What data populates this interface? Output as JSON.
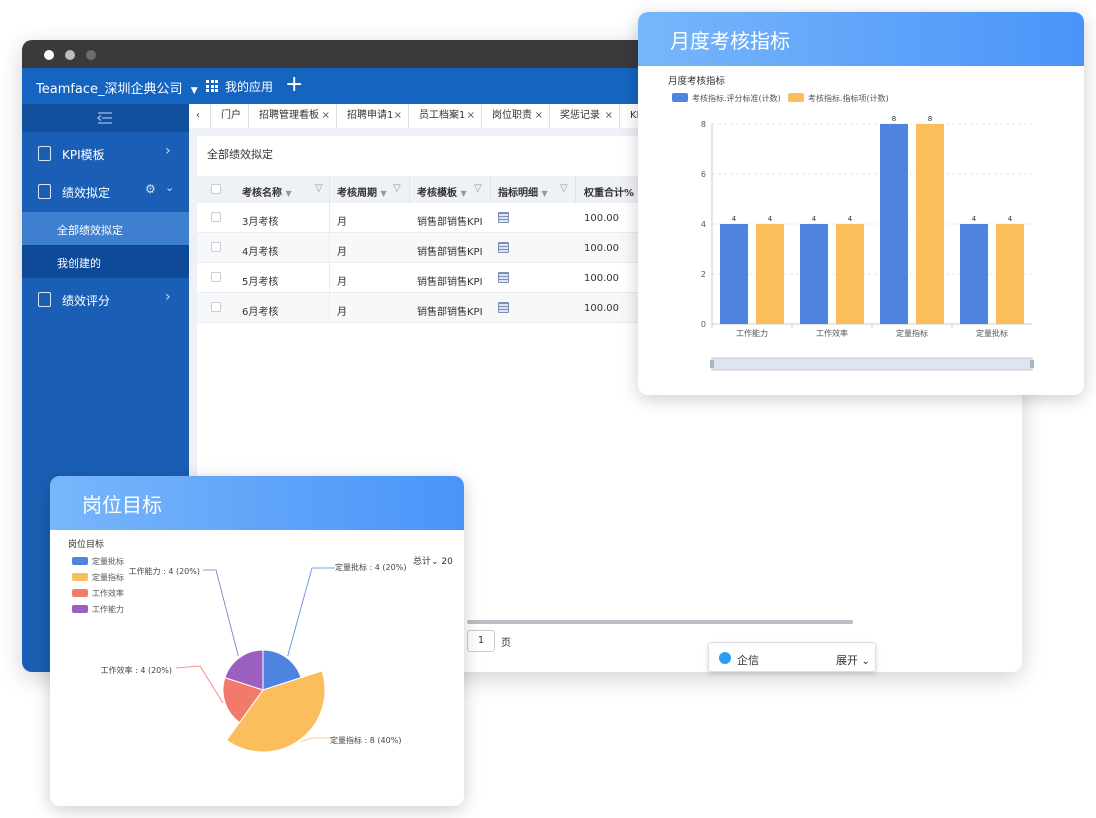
{
  "window": {
    "company": "Teamface_深圳企典公司",
    "my_apps": "我的应用",
    "plus": "+"
  },
  "sidebar": {
    "items": [
      {
        "label": "KPI模板"
      },
      {
        "label": "绩效拟定"
      },
      {
        "label": "绩效评分"
      }
    ],
    "sub_items": [
      {
        "label": "全部绩效拟定"
      },
      {
        "label": "我创建的"
      }
    ]
  },
  "tabs": [
    {
      "label": "门户"
    },
    {
      "label": "招聘管理看板"
    },
    {
      "label": "招聘申请1"
    },
    {
      "label": "员工档案1"
    },
    {
      "label": "岗位职责"
    },
    {
      "label": "奖惩记录"
    },
    {
      "label": "KI"
    }
  ],
  "page_title": "全部绩效拟定",
  "table": {
    "columns": [
      "考核名称",
      "考核周期",
      "考核模板",
      "指标明细",
      "权重合计%"
    ],
    "rows": [
      {
        "name": "3月考核",
        "period": "月",
        "template": "销售部销售KPI",
        "weight": "100.00"
      },
      {
        "name": "4月考核",
        "period": "月",
        "template": "销售部销售KPI",
        "weight": "100.00"
      },
      {
        "name": "5月考核",
        "period": "月",
        "template": "销售部销售KPI",
        "weight": "100.00"
      },
      {
        "name": "6月考核",
        "period": "月",
        "template": "销售部销售KPI",
        "weight": "100.00"
      }
    ]
  },
  "pager": {
    "page": "1",
    "suffix": "页"
  },
  "qixin": {
    "label": "企信",
    "expand": "展开"
  },
  "colors": {
    "brand": "#1565c0",
    "blue": "#4f83e0",
    "orange": "#fbbe5c",
    "red": "#f27a6a",
    "purple": "#9b5fc0"
  },
  "bar_card": {
    "header": "月度考核指标"
  },
  "pie_card": {
    "header": "岗位目标",
    "total_label": "总计",
    "total_value": "20"
  },
  "chart_data": [
    {
      "type": "bar",
      "title": "月度考核指标",
      "categories": [
        "工作能力",
        "工作效率",
        "定量指标",
        "定量批标"
      ],
      "series": [
        {
          "name": "考核指标.评分标准(计数)",
          "values": [
            4,
            4,
            8,
            4
          ]
        },
        {
          "name": "考核指标.指标项(计数)",
          "values": [
            4,
            4,
            8,
            4
          ]
        }
      ],
      "ylim": [
        0,
        8
      ],
      "yticks": [
        "0",
        "2",
        "4",
        "6",
        "8"
      ],
      "grid": true,
      "legend": "top-left"
    },
    {
      "type": "pie",
      "title": "岗位目标",
      "slices": [
        {
          "name": "定量批标",
          "value": 4,
          "label": "定量批标 : 4 (20%)"
        },
        {
          "name": "定量指标",
          "value": 8,
          "label": "定量指标 : 8 (40%)"
        },
        {
          "name": "工作效率",
          "value": 4,
          "label": "工作效率 : 4 (20%)"
        },
        {
          "name": "工作能力",
          "value": 4,
          "label": "工作能力 : 4 (20%)"
        }
      ],
      "legend": "top-left"
    }
  ]
}
